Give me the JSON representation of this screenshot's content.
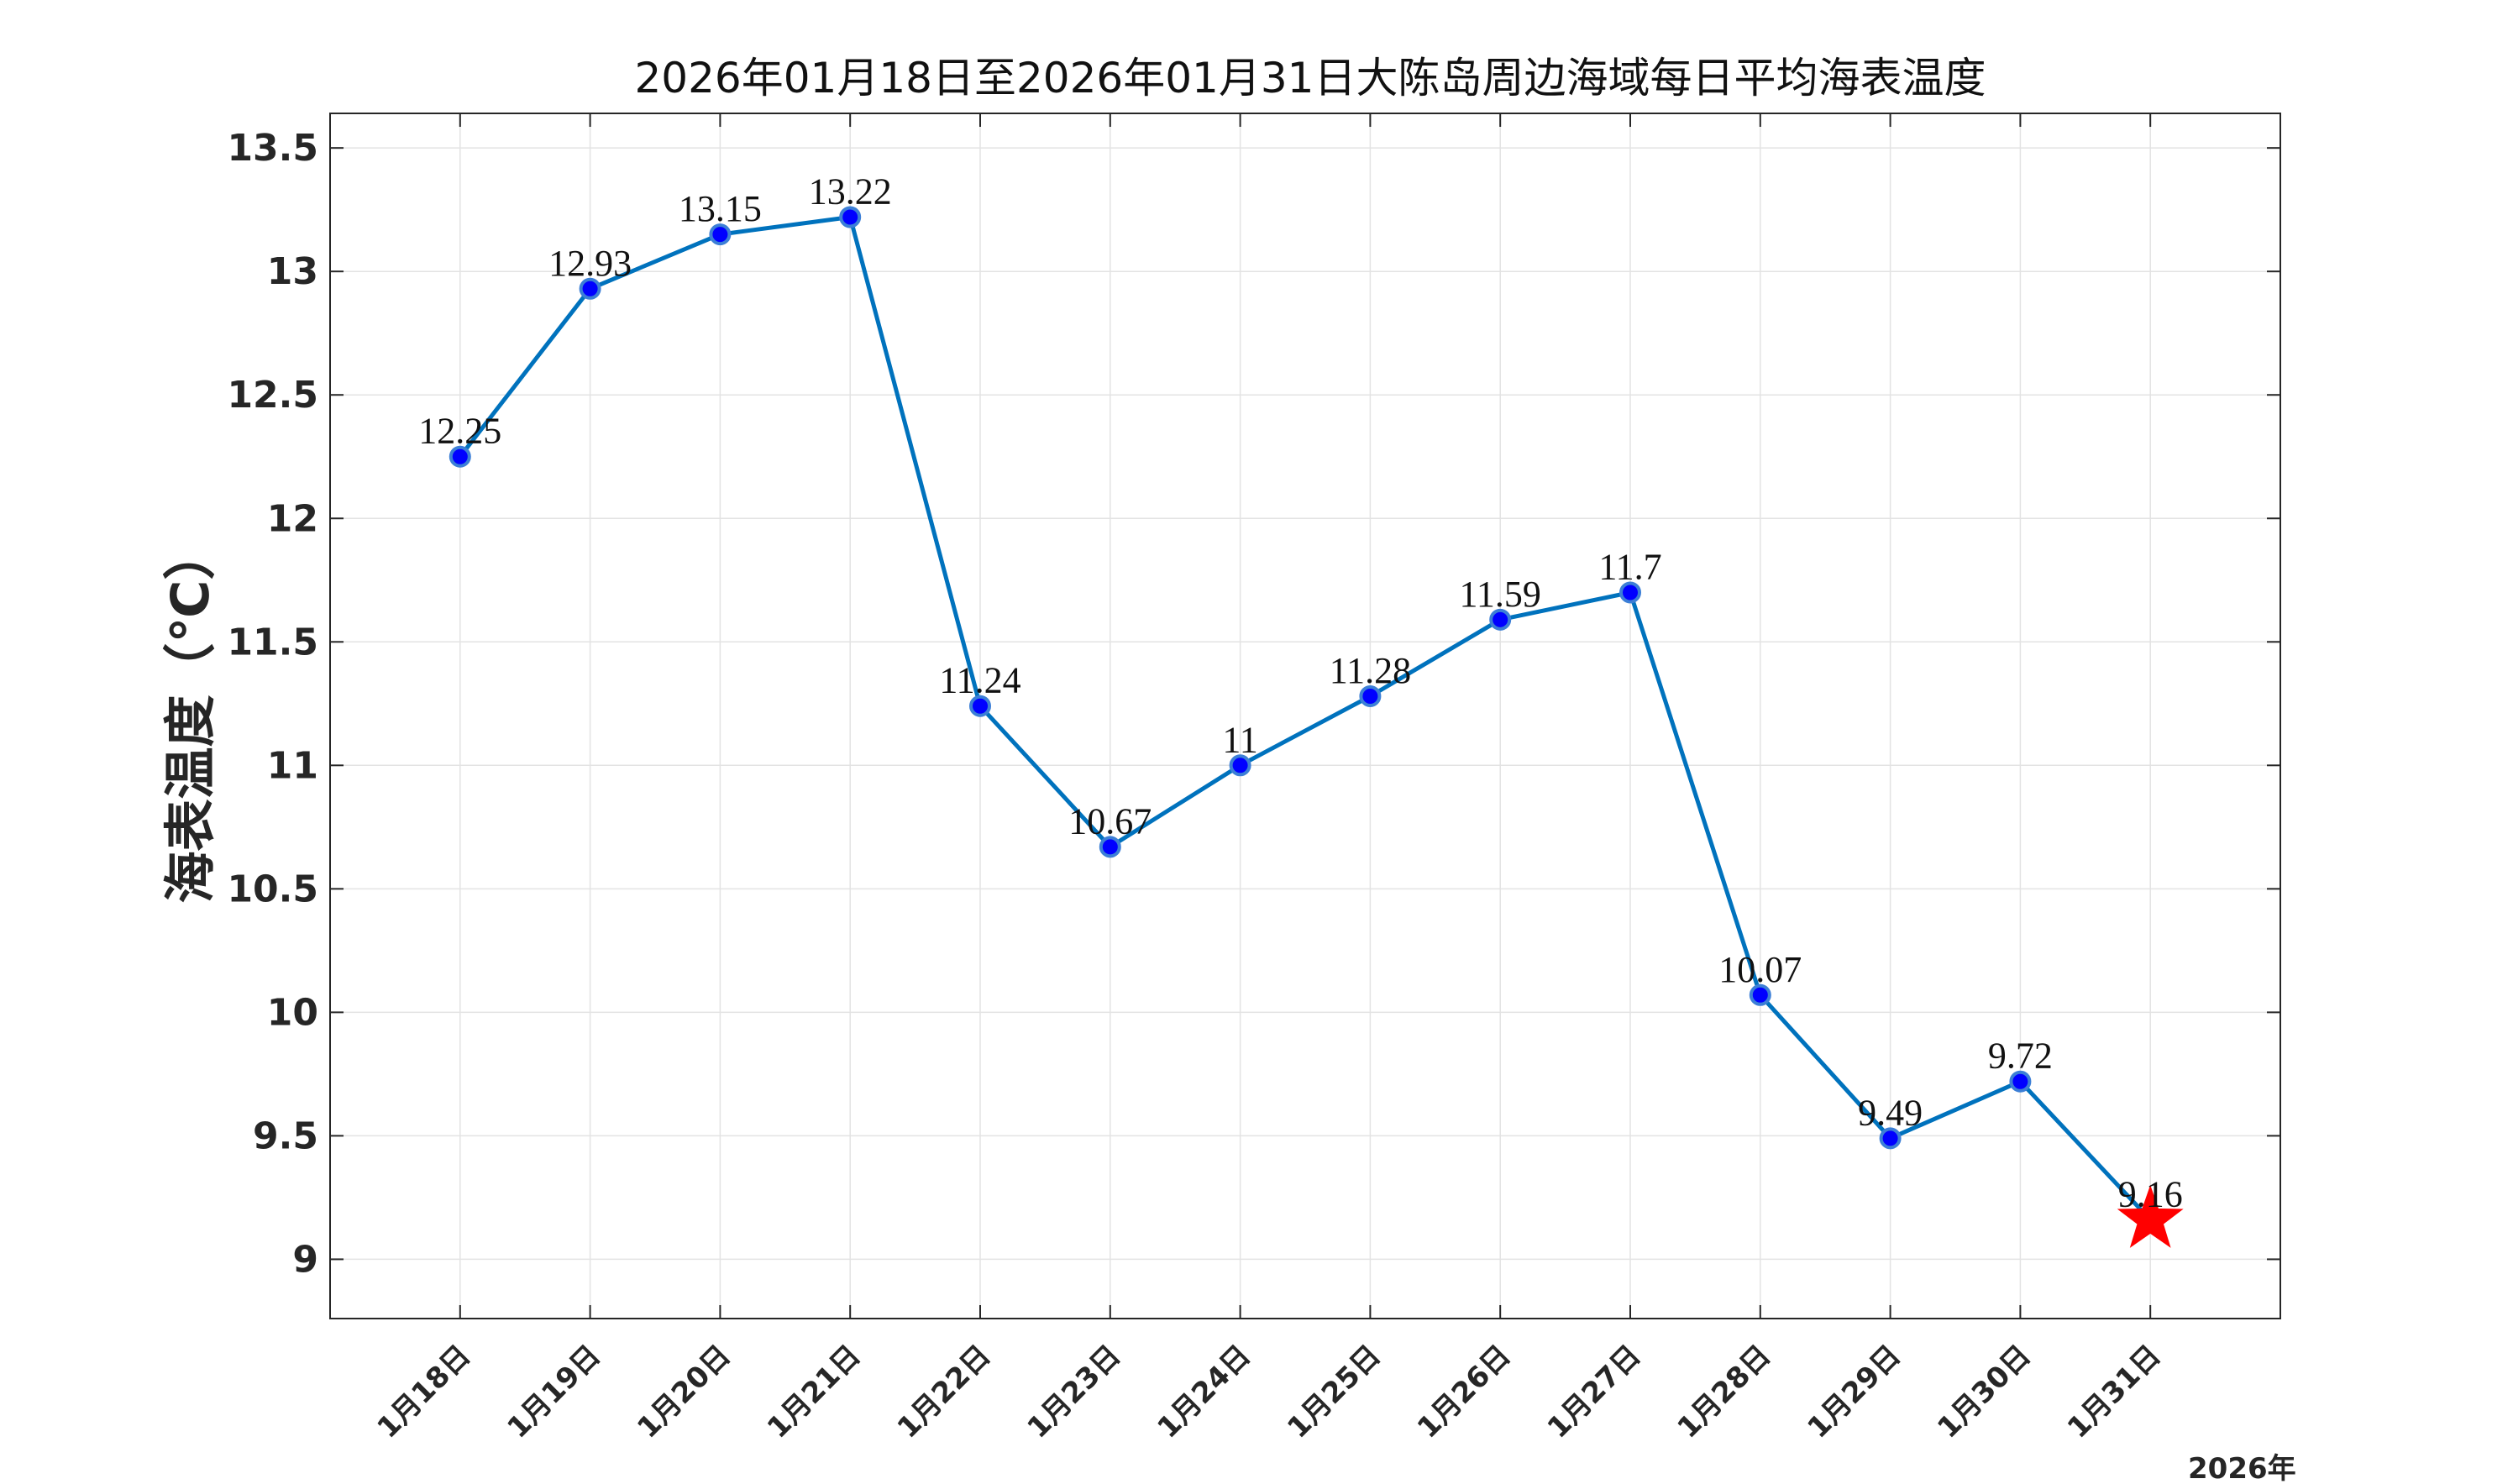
{
  "chart_data": {
    "type": "line",
    "title": "2026年01月18日至2026年01月31日大陈岛周边海域每日平均海表温度",
    "xlabel": "2026年",
    "ylabel": "海表温度（℃）",
    "categories": [
      "1月18日",
      "1月19日",
      "1月20日",
      "1月21日",
      "1月22日",
      "1月23日",
      "1月24日",
      "1月25日",
      "1月26日",
      "1月27日",
      "1月28日",
      "1月29日",
      "1月30日",
      "1月31日"
    ],
    "series": [
      {
        "values": [
          12.25,
          12.93,
          13.15,
          13.22,
          11.24,
          10.67,
          11,
          11.28,
          11.59,
          11.7,
          10.07,
          9.49,
          9.72,
          9.16
        ],
        "labels": [
          "12.25",
          "12.93",
          "13.15",
          "13.22",
          "11.24",
          "10.67",
          "11",
          "11.28",
          "11.59",
          "11.7",
          "10.07",
          "9.49",
          "9.72",
          "9.16"
        ]
      }
    ],
    "yticks": [
      9,
      9.5,
      10,
      10.5,
      11,
      11.5,
      12,
      12.5,
      13,
      13.5
    ],
    "ytick_labels": [
      "9",
      "9.5",
      "10",
      "10.5",
      "11",
      "11.5",
      "12",
      "12.5",
      "13",
      "13.5"
    ],
    "ylim": [
      8.76,
      13.64
    ],
    "xlim": [
      0,
      15
    ],
    "grid": true,
    "highlight": {
      "index": 13,
      "marker": "star"
    },
    "colors": {
      "line": "#0072BD",
      "marker_fill": "#0000FF",
      "marker_edge": "#3C7FD6",
      "star": "#FF0000",
      "grid": "#E3E3E3",
      "axis": "#262626"
    }
  }
}
